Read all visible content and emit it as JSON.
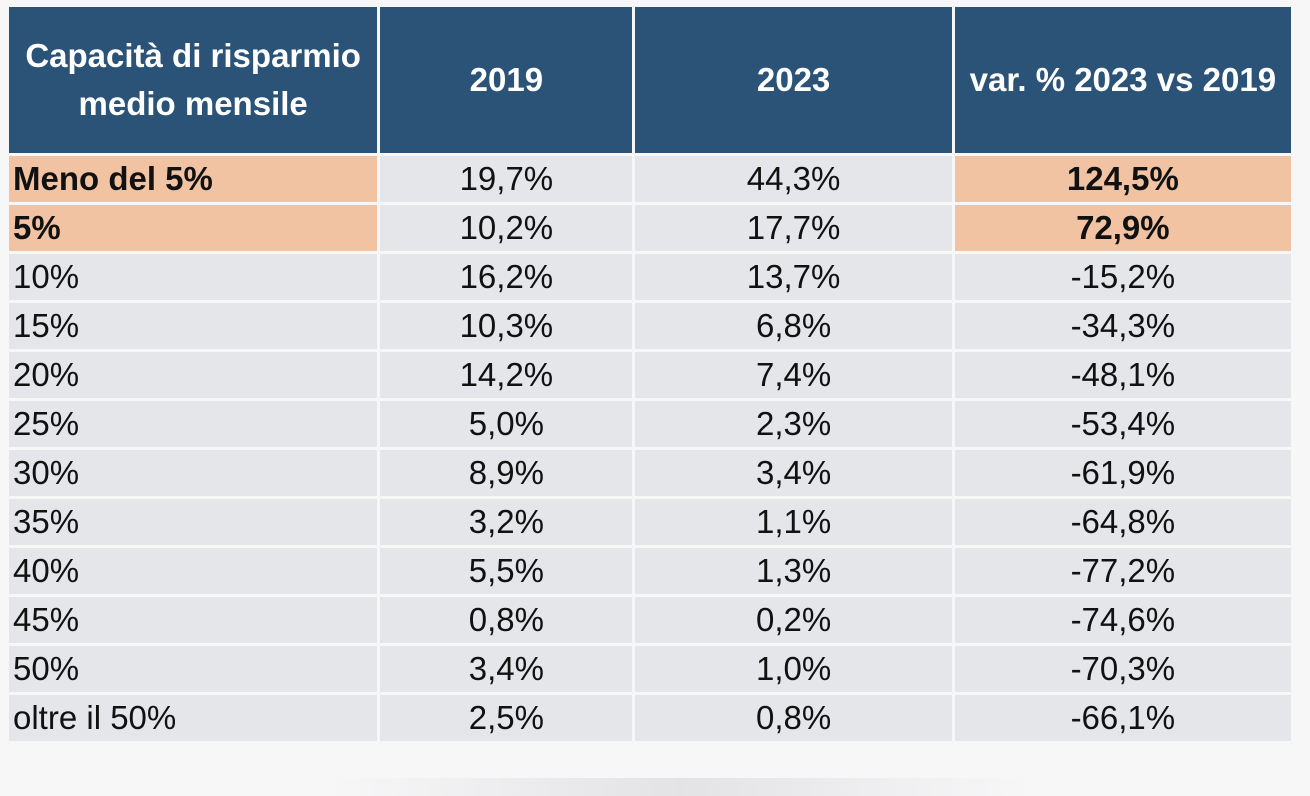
{
  "table": {
    "headers": [
      "Capacità di risparmio medio mensile",
      "2019",
      "2023",
      "var. % 2023 vs 2019"
    ],
    "rows": [
      {
        "label": "Meno del 5%",
        "y2019": "19,7%",
        "y2023": "44,3%",
        "var": "124,5%",
        "highlight": true
      },
      {
        "label": "5%",
        "y2019": "10,2%",
        "y2023": "17,7%",
        "var": "72,9%",
        "highlight": true
      },
      {
        "label": "10%",
        "y2019": "16,2%",
        "y2023": "13,7%",
        "var": "-15,2%",
        "highlight": false
      },
      {
        "label": "15%",
        "y2019": "10,3%",
        "y2023": "6,8%",
        "var": "-34,3%",
        "highlight": false
      },
      {
        "label": "20%",
        "y2019": "14,2%",
        "y2023": "7,4%",
        "var": "-48,1%",
        "highlight": false
      },
      {
        "label": "25%",
        "y2019": "5,0%",
        "y2023": "2,3%",
        "var": "-53,4%",
        "highlight": false
      },
      {
        "label": "30%",
        "y2019": "8,9%",
        "y2023": "3,4%",
        "var": "-61,9%",
        "highlight": false
      },
      {
        "label": "35%",
        "y2019": "3,2%",
        "y2023": "1,1%",
        "var": "-64,8%",
        "highlight": false
      },
      {
        "label": "40%",
        "y2019": "5,5%",
        "y2023": "1,3%",
        "var": "-77,2%",
        "highlight": false
      },
      {
        "label": "45%",
        "y2019": "0,8%",
        "y2023": "0,2%",
        "var": "-74,6%",
        "highlight": false
      },
      {
        "label": "50%",
        "y2019": "3,4%",
        "y2023": "1,0%",
        "var": "-70,3%",
        "highlight": false
      },
      {
        "label": "oltre il 50%",
        "y2019": "2,5%",
        "y2023": "0,8%",
        "var": "-66,1%",
        "highlight": false
      }
    ]
  },
  "colors": {
    "header_bg": "#2a5377",
    "header_text": "#ffffff",
    "highlight_bg": "#f2c3a3",
    "row_bg": "#e5e6e9"
  }
}
